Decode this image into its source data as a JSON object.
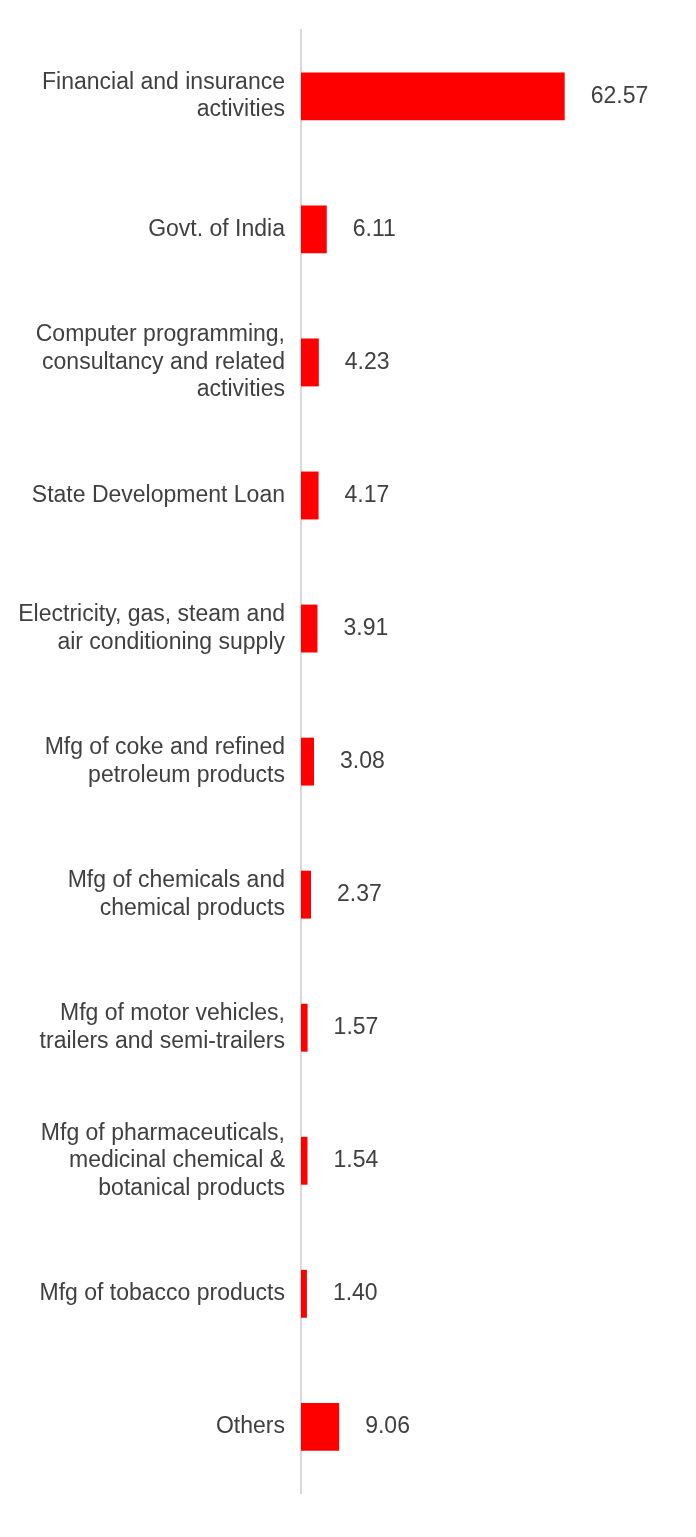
{
  "chart_data": {
    "type": "bar",
    "orientation": "horizontal",
    "categories": [
      "Financial and insurance activities",
      "Govt. of India",
      "Computer programming, consultancy and related activities",
      "State Development Loan",
      "Electricity, gas, steam and air conditioning supply",
      "Mfg of coke and refined petroleum products",
      "Mfg of chemicals and chemical products",
      "Mfg of motor vehicles, trailers and semi-trailers",
      "Mfg of pharmaceuticals, medicinal chemical & botanical products",
      "Mfg of tobacco products",
      "Others"
    ],
    "values": [
      62.57,
      6.11,
      4.23,
      4.17,
      3.91,
      3.08,
      2.37,
      1.57,
      1.54,
      1.4,
      9.06
    ],
    "value_labels": [
      "62.57",
      "6.11",
      "4.23",
      "4.17",
      "3.91",
      "3.08",
      "2.37",
      "1.57",
      "1.54",
      "1.40",
      "9.06"
    ],
    "color": "#ff0000"
  }
}
